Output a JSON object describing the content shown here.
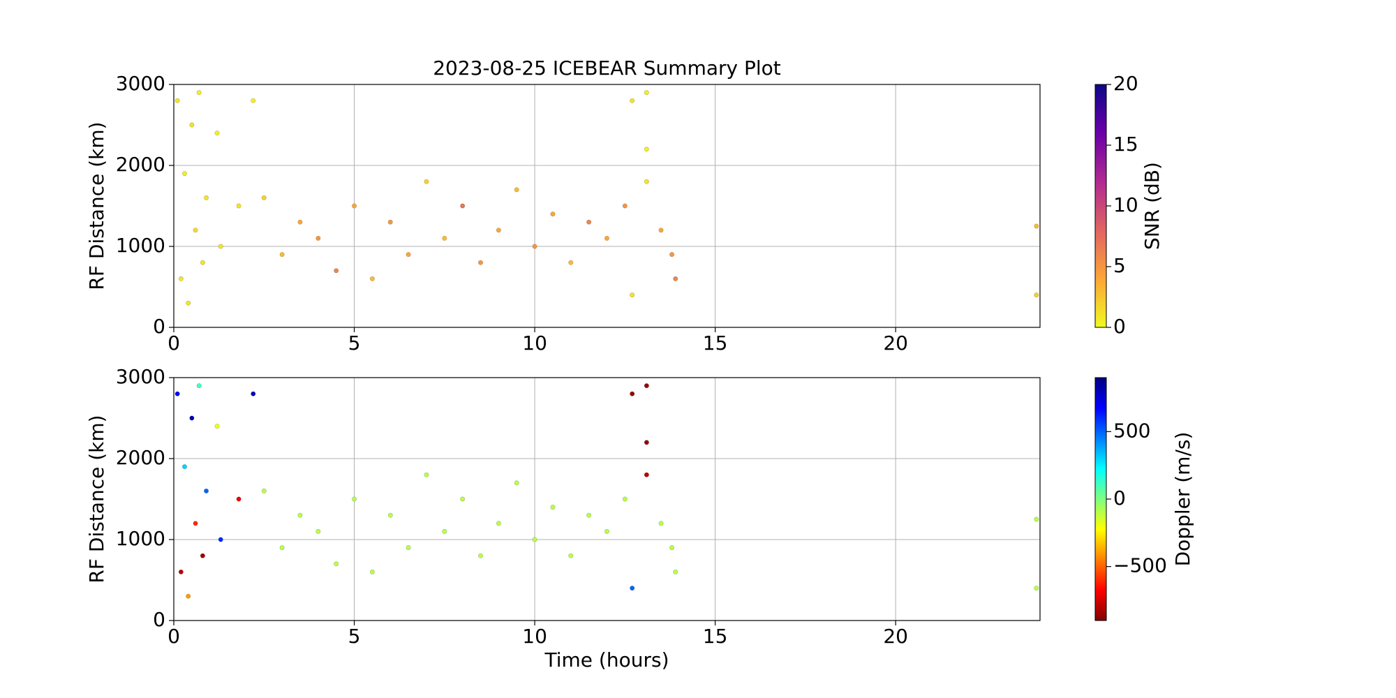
{
  "chart_data": [
    {
      "type": "scatter",
      "title": "2023-08-25 ICEBEAR Summary Plot",
      "ylabel": "RF Distance (km)",
      "x": [
        0.1,
        0.2,
        0.3,
        0.4,
        0.5,
        0.6,
        0.7,
        0.8,
        0.9,
        1.2,
        1.3,
        1.8,
        2.2,
        2.5,
        3,
        3.5,
        4,
        4.5,
        5,
        5.5,
        6,
        6.5,
        7,
        7.5,
        8,
        8.5,
        9,
        9.5,
        10,
        10.5,
        11,
        11.5,
        12,
        12.5,
        12.7,
        12.7,
        13.1,
        13.1,
        13.1,
        13.5,
        13.8,
        13.9,
        23.9,
        23.9
      ],
      "values": [
        2800,
        600,
        1900,
        300,
        2500,
        1200,
        2900,
        800,
        1600,
        2400,
        1000,
        1500,
        2800,
        1600,
        900,
        1300,
        1100,
        700,
        1500,
        600,
        1300,
        900,
        1800,
        1100,
        1500,
        800,
        1200,
        1700,
        1000,
        1400,
        800,
        1300,
        1100,
        1500,
        2800,
        400,
        2900,
        2200,
        1800,
        1200,
        900,
        600,
        1250,
        400
      ],
      "color_values": [
        1,
        1,
        0.5,
        1,
        1,
        1.5,
        0.5,
        1,
        1,
        0.5,
        1,
        1,
        0.5,
        2,
        3,
        4,
        5,
        6,
        4,
        3,
        5,
        4,
        2,
        3,
        7,
        5,
        4,
        3,
        5,
        4,
        3,
        6,
        4,
        5,
        1,
        1,
        0.5,
        0.5,
        1,
        4,
        5,
        6,
        3,
        2
      ],
      "xlim": [
        0,
        24
      ],
      "ylim": [
        0,
        3000
      ],
      "xticks": [
        0,
        5,
        10,
        15,
        20
      ],
      "yticks": [
        0,
        1000,
        2000,
        3000
      ],
      "grid": true,
      "colorbar": {
        "label": "SNR (dB)",
        "lim": [
          0,
          20
        ],
        "ticks": [
          0,
          5,
          10,
          15,
          20
        ],
        "colormap": [
          "#f0f921",
          "#fca636",
          "#e16462",
          "#b12a90",
          "#6a00a8",
          "#0d0887"
        ]
      }
    },
    {
      "type": "scatter",
      "ylabel": "RF Distance (km)",
      "xlabel": "Time (hours)",
      "x": [
        0.1,
        0.2,
        0.3,
        0.4,
        0.5,
        0.6,
        0.7,
        0.8,
        0.9,
        1.2,
        1.3,
        1.8,
        2.2,
        2.5,
        3,
        3.5,
        4,
        4.5,
        5,
        5.5,
        6,
        6.5,
        7,
        7.5,
        8,
        8.5,
        9,
        9.5,
        10,
        10.5,
        11,
        11.5,
        12,
        12.5,
        12.7,
        12.7,
        13.1,
        13.1,
        13.1,
        13.5,
        13.8,
        13.9,
        23.9,
        23.9
      ],
      "values": [
        2800,
        600,
        1900,
        300,
        2500,
        1200,
        2900,
        800,
        1600,
        2400,
        1000,
        1500,
        2800,
        1600,
        900,
        1300,
        1100,
        700,
        1500,
        600,
        1300,
        900,
        1800,
        1100,
        1500,
        800,
        1200,
        1700,
        1000,
        1400,
        800,
        1300,
        1100,
        1500,
        2800,
        400,
        2900,
        2200,
        1800,
        1200,
        900,
        600,
        1250,
        400
      ],
      "color_values": [
        700,
        -800,
        300,
        -400,
        800,
        -600,
        100,
        -850,
        500,
        -200,
        600,
        -700,
        800,
        -100,
        -100,
        -100,
        -100,
        -100,
        -100,
        -100,
        -100,
        -100,
        -100,
        -100,
        -100,
        -100,
        -100,
        -100,
        -100,
        -100,
        -100,
        -100,
        -100,
        -100,
        -850,
        500,
        -850,
        -850,
        -800,
        -100,
        -100,
        -100,
        -100,
        -100
      ],
      "xlim": [
        0,
        24
      ],
      "ylim": [
        0,
        3000
      ],
      "xticks": [
        0,
        5,
        10,
        15,
        20
      ],
      "yticks": [
        0,
        1000,
        2000,
        3000
      ],
      "grid": true,
      "colorbar": {
        "label": "Doppler (m/s)",
        "lim": [
          -900,
          900
        ],
        "ticks": [
          {
            "value": -500,
            "label": "−500"
          },
          0,
          500
        ],
        "colormap": [
          "#7f0000",
          "#ff0000",
          "#ff7f00",
          "#ffff00",
          "#7fff7f",
          "#00ffff",
          "#007fff",
          "#0000ff",
          "#00007f"
        ]
      }
    }
  ]
}
